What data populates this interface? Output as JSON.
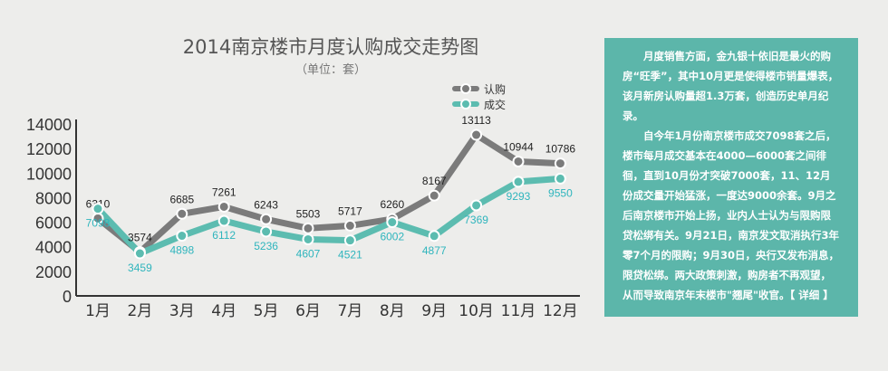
{
  "title": "2014南京楼市月度认购成交走势图",
  "subtitle": "（单位：套）",
  "chart_data": {
    "type": "line",
    "title": "2014南京楼市月度认购成交走势图",
    "subtitle": "（单位：套）",
    "categories": [
      "1月",
      "2月",
      "3月",
      "4月",
      "5月",
      "6月",
      "7月",
      "8月",
      "9月",
      "10月",
      "11月",
      "12月"
    ],
    "series": [
      {
        "name": "认购",
        "color": "#7b7b7b",
        "label_color": "#222222",
        "values": [
          6310,
          3574,
          6685,
          7261,
          6243,
          5503,
          5717,
          6260,
          8167,
          13113,
          10944,
          10786
        ]
      },
      {
        "name": "成交",
        "color": "#5cbcb0",
        "label_color": "#2fb5bd",
        "values": [
          7098,
          3459,
          4898,
          6112,
          5236,
          4607,
          4521,
          6002,
          4877,
          7369,
          9293,
          9550
        ]
      }
    ],
    "ylim": [
      0,
      14000
    ],
    "yticks": [
      0,
      2000,
      4000,
      6000,
      8000,
      10000,
      12000,
      14000
    ],
    "grid": false,
    "legend": "top-right",
    "data_labels": true
  },
  "textbox": {
    "background": "#5cb6aa",
    "paragraphs": [
      "月度销售方面，金九银十依旧是最火的购房“旺季”，其中10月更是使得楼市销量爆表，该月新房认购量超1.3万套，创造历史单月纪录。",
      "自今年1月份南京楼市成交7098套之后，楼市每月成交基本在4000—6000套之间徘徊，直到10月份才突破7000套，11、12月份成交量开始猛涨，一度达9000余套。9月之后南京楼市开始上扬，业内人士认为与限购限贷松绑有关。9月21日，南京发文取消执行3年零7个月的限购；9月30日，央行又发布消息，限贷松绑。两大政策刺激，购房者不再观望，从而导致南京年末楼市\"翘尾\"收官。"
    ],
    "link": "【 详细 】"
  }
}
